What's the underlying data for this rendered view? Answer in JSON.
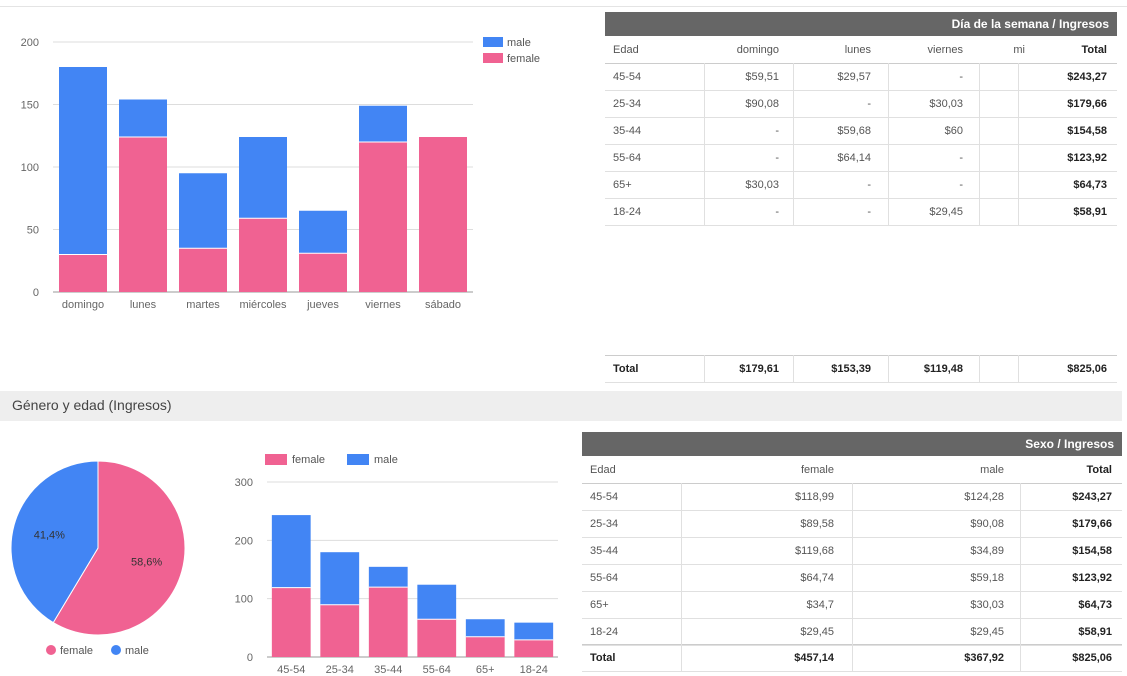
{
  "colors": {
    "male": "#4285f4",
    "female": "#f06292",
    "header_bg": "#666666",
    "section_bg": "#eeeeee"
  },
  "chart_data": [
    {
      "type": "bar",
      "stacked": true,
      "categories": [
        "domingo",
        "lunes",
        "martes",
        "miércoles",
        "jueves",
        "viernes",
        "sábado"
      ],
      "series": [
        {
          "name": "female",
          "values": [
            30,
            124,
            35,
            59,
            31,
            120,
            124
          ]
        },
        {
          "name": "male",
          "values": [
            150,
            30,
            60,
            65,
            34,
            29,
            0
          ]
        }
      ],
      "yticks": [
        "200",
        "150",
        "100",
        "50",
        "0"
      ],
      "ylim": [
        0,
        200
      ],
      "grid": true,
      "legend_position": "top-right"
    },
    {
      "type": "pie",
      "labels": [
        "female",
        "male"
      ],
      "values": [
        58.6,
        41.4
      ],
      "slice_labels": [
        "58,6%",
        "41,4%"
      ],
      "legend_position": "bottom"
    },
    {
      "type": "bar",
      "stacked": true,
      "categories": [
        "45-54",
        "25-34",
        "35-44",
        "55-64",
        "65+",
        "18-24"
      ],
      "series": [
        {
          "name": "female",
          "values": [
            118.99,
            89.58,
            119.68,
            64.74,
            34.7,
            29.45
          ]
        },
        {
          "name": "male",
          "values": [
            124.28,
            90.08,
            34.89,
            59.18,
            30.03,
            29.45
          ]
        }
      ],
      "yticks": [
        "300",
        "200",
        "100",
        "0"
      ],
      "ylim": [
        0,
        300
      ],
      "grid": true,
      "legend_position": "top"
    },
    {
      "type": "table",
      "title": "Día de la semana / Ingresos",
      "columns": [
        "Edad",
        "domingo",
        "lunes",
        "viernes",
        "mi",
        "Total"
      ],
      "rows": [
        [
          "45-54",
          "$59,51",
          "$29,57",
          "-",
          "",
          "$243,27"
        ],
        [
          "25-34",
          "$90,08",
          "-",
          "$30,03",
          "",
          "$179,66"
        ],
        [
          "35-44",
          "-",
          "$59,68",
          "$60",
          "",
          "$154,58"
        ],
        [
          "55-64",
          "-",
          "$64,14",
          "-",
          "",
          "$123,92"
        ],
        [
          "65+",
          "$30,03",
          "-",
          "-",
          "",
          "$64,73"
        ],
        [
          "18-24",
          "-",
          "-",
          "$29,45",
          "",
          "$58,91"
        ]
      ],
      "total_row": [
        "Total",
        "$179,61",
        "$153,39",
        "$119,48",
        "",
        "$825,06"
      ]
    },
    {
      "type": "table",
      "title": "Sexo / Ingresos",
      "columns": [
        "Edad",
        "female",
        "male",
        "Total"
      ],
      "rows": [
        [
          "45-54",
          "$118,99",
          "$124,28",
          "$243,27"
        ],
        [
          "25-34",
          "$89,58",
          "$90,08",
          "$179,66"
        ],
        [
          "35-44",
          "$119,68",
          "$34,89",
          "$154,58"
        ],
        [
          "55-64",
          "$64,74",
          "$59,18",
          "$123,92"
        ],
        [
          "65+",
          "$34,7",
          "$30,03",
          "$64,73"
        ],
        [
          "18-24",
          "$29,45",
          "$29,45",
          "$58,91"
        ]
      ],
      "total_row": [
        "Total",
        "$457,14",
        "$367,92",
        "$825,06"
      ]
    }
  ],
  "section": {
    "title": "Género y edad (Ingresos)"
  }
}
